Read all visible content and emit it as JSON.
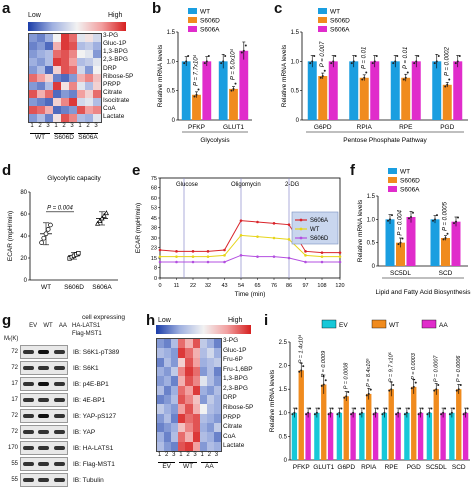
{
  "panels": {
    "a": {
      "label": "a",
      "legend_low": "Low",
      "legend_high": "High",
      "rows": [
        "3-PG",
        "Gluc-1P",
        "1,3-BPG",
        "2,3-BPG",
        "DRP",
        "Ribose-5P",
        "PRPP",
        "Citrate",
        "Isocitrate",
        "CoA",
        "Lactate"
      ],
      "col_numbers": [
        "1",
        "2",
        "3",
        "1",
        "2",
        "3",
        "1",
        "2",
        "3"
      ],
      "groups": [
        "WT",
        "S606D",
        "S606A"
      ],
      "matrix": [
        [
          0.2,
          0.15,
          0.25,
          0.5,
          0.95,
          0.85,
          0.45,
          0.55,
          0.4
        ],
        [
          0.15,
          0.2,
          0.1,
          0.7,
          0.95,
          0.9,
          0.3,
          0.35,
          0.25
        ],
        [
          0.2,
          0.25,
          0.3,
          0.85,
          0.9,
          0.8,
          0.5,
          0.45,
          0.2
        ],
        [
          0.25,
          0.2,
          0.3,
          0.95,
          0.9,
          0.75,
          0.3,
          0.35,
          0.45
        ],
        [
          0.2,
          0.3,
          0.1,
          0.6,
          0.9,
          0.85,
          0.4,
          0.2,
          0.5
        ],
        [
          0.85,
          0.75,
          0.6,
          0.15,
          0.1,
          0.2,
          0.7,
          0.8,
          0.65
        ],
        [
          0.2,
          0.15,
          0.3,
          0.95,
          0.55,
          0.8,
          0.45,
          0.3,
          0.6
        ],
        [
          0.9,
          0.7,
          0.85,
          0.1,
          0.2,
          0.15,
          0.75,
          0.6,
          0.85
        ],
        [
          0.2,
          0.15,
          0.1,
          0.6,
          0.8,
          0.95,
          0.4,
          0.45,
          0.3
        ],
        [
          0.9,
          0.85,
          0.7,
          0.1,
          0.15,
          0.2,
          0.9,
          0.75,
          0.8
        ],
        [
          0.2,
          0.3,
          0.15,
          0.55,
          0.9,
          0.8,
          0.3,
          0.25,
          0.45
        ]
      ]
    },
    "b": {
      "label": "b",
      "legend": [
        "WT",
        "S606D",
        "S606A"
      ],
      "colors": [
        "#1a9ee0",
        "#f08b1e",
        "#e02ccb"
      ],
      "ylabel": "Relative mRNA levels",
      "yticks": [
        "0",
        "0.5",
        "1.0",
        "1.5"
      ],
      "ymax": 1.5,
      "categories": [
        "PFKP",
        "GLUT1"
      ],
      "values": [
        [
          1.0,
          0.43,
          1.0
        ],
        [
          1.0,
          0.53,
          1.18
        ]
      ],
      "errors": [
        [
          0.08,
          0.05,
          0.08
        ],
        [
          0.12,
          0.04,
          0.15
        ]
      ],
      "pvalues": [
        "P = 7.7x10⁴",
        "P = 5.0x10⁴"
      ],
      "xlabel": "Glycolysis"
    },
    "c": {
      "label": "c",
      "legend": [
        "WT",
        "S606D",
        "S606A"
      ],
      "colors": [
        "#1a9ee0",
        "#f08b1e",
        "#e02ccb"
      ],
      "ylabel": "Relative mRNA levels",
      "yticks": [
        "0",
        "0.5",
        "1.0",
        "1.5"
      ],
      "ymax": 1.5,
      "categories": [
        "G6PD",
        "RPIA",
        "RPE",
        "PGD"
      ],
      "values": [
        [
          1.0,
          0.75,
          1.0
        ],
        [
          1.0,
          0.72,
          1.0
        ],
        [
          1.0,
          0.72,
          1.0
        ],
        [
          1.0,
          0.6,
          1.0
        ]
      ],
      "errors": [
        [
          0.1,
          0.05,
          0.1
        ],
        [
          0.1,
          0.05,
          0.1
        ],
        [
          0.1,
          0.06,
          0.1
        ],
        [
          0.12,
          0.04,
          0.1
        ]
      ],
      "pvalues": [
        "P = 0.007",
        "P = 0.01",
        "P = 0.01",
        "P = 0.0002"
      ],
      "xlabel": "Pentose Phosphate Pathway"
    },
    "d": {
      "label": "d",
      "title": "Glycolytic capacity",
      "ylabel": "ECAR (mpH/min)",
      "yticks": [
        "0",
        "20",
        "40",
        "60",
        "80"
      ],
      "ymax": 80,
      "categories": [
        "WT",
        "S606D",
        "S606A"
      ],
      "means": [
        42,
        22,
        56
      ],
      "errors": [
        10,
        3,
        6
      ],
      "pvalue": "P = 0.004"
    },
    "e": {
      "label": "e",
      "ylabel": "ECAR (mpH/min)",
      "xlabel": "Time (min)",
      "yticks": [
        "0",
        "8",
        "15",
        "23",
        "30",
        "38",
        "45",
        "53",
        "60",
        "68",
        "75"
      ],
      "xticks": [
        "0",
        "11",
        "22",
        "32",
        "43",
        "54",
        "65",
        "76",
        "86",
        "97",
        "108",
        "120"
      ],
      "treatments": [
        "Glucose",
        "Oligomycin",
        "2-DG"
      ],
      "legend": [
        "S606A",
        "WT",
        "S606D"
      ],
      "colors": [
        "#d9242a",
        "#e6d51a",
        "#b34fe0"
      ],
      "chart_data": {
        "type": "line",
        "x": [
          0,
          11,
          22,
          32,
          43,
          54,
          65,
          76,
          86,
          97,
          108,
          120
        ],
        "series": [
          {
            "name": "S606A",
            "values": [
              21,
              20,
              20,
              20,
              21,
              43,
              42,
              41,
              40,
              20,
              19,
              19
            ]
          },
          {
            "name": "WT",
            "values": [
              16,
              16,
              16,
              16,
              17,
              32,
              31,
              30,
              29,
              17,
              16,
              16
            ]
          },
          {
            "name": "S606D",
            "values": [
              12,
              12,
              12,
              12,
              12,
              17,
              16,
              16,
              15,
              12,
              12,
              12
            ]
          }
        ],
        "xlim": [
          0,
          120
        ],
        "ylim": [
          0,
          75
        ]
      }
    },
    "f": {
      "label": "f",
      "legend": [
        "WT",
        "S606D",
        "S606A"
      ],
      "colors": [
        "#1a9ee0",
        "#f08b1e",
        "#e02ccb"
      ],
      "ylabel": "Relative mRNA levels",
      "yticks": [
        "0",
        "0.5",
        "1.0",
        "1.5"
      ],
      "ymax": 1.5,
      "categories": [
        "SC5DL",
        "SCD"
      ],
      "values": [
        [
          1.0,
          0.5,
          1.05
        ],
        [
          1.0,
          0.6,
          0.95
        ]
      ],
      "errors": [
        [
          0.1,
          0.1,
          0.12
        ],
        [
          0.08,
          0.05,
          0.1
        ]
      ],
      "pvalues": [
        "P = 0.004",
        "P = 0.0005"
      ],
      "xlabel": "Lipid and Fatty Acid Biosynthesis"
    },
    "g": {
      "label": "g",
      "mr_label": "Mᵣ(K)",
      "lanes": [
        "EV",
        "WT",
        "AA"
      ],
      "cell_expressing": "cell expressing",
      "ha_lats1": "HA-LATS1",
      "flag_mst1": "Flag-MST1",
      "rows": [
        {
          "mr": "72",
          "ib": "IB: S6K1-pT389"
        },
        {
          "mr": "72",
          "ib": "IB: S6K1"
        },
        {
          "mr": "17",
          "ib": "IB: p4E-BP1"
        },
        {
          "mr": "17",
          "ib": "IB: 4E-BP1"
        },
        {
          "mr": "72",
          "ib": "IB: YAP-pS127"
        },
        {
          "mr": "72",
          "ib": "IB: YAP"
        },
        {
          "mr": "170",
          "ib": "IB: HA-LATS1"
        },
        {
          "mr": "55",
          "ib": "IB: Flag-MST1"
        },
        {
          "mr": "55",
          "ib": "IB: Tubulin"
        }
      ]
    },
    "h": {
      "label": "h",
      "legend_low": "Low",
      "legend_high": "High",
      "rows": [
        "3-PG",
        "Gluc-1P",
        "Fru-6P",
        "Fru-1,6BP",
        "1,3-BPG",
        "2,3-BPG",
        "DRP",
        "Ribose-5P",
        "PRPP",
        "Citrate",
        "CoA",
        "Lactate"
      ],
      "col_numbers": [
        "1",
        "2",
        "3",
        "1",
        "2",
        "3",
        "1",
        "2",
        "3"
      ],
      "groups": [
        "EV",
        "WT",
        "AA"
      ],
      "matrix": [
        [
          0.2,
          0.15,
          0.3,
          0.85,
          0.7,
          0.9,
          0.35,
          0.25,
          0.15
        ],
        [
          0.3,
          0.25,
          0.2,
          0.95,
          0.85,
          0.7,
          0.3,
          0.4,
          0.25
        ],
        [
          0.15,
          0.3,
          0.2,
          0.6,
          0.9,
          0.75,
          0.25,
          0.3,
          0.35
        ],
        [
          0.25,
          0.2,
          0.35,
          0.8,
          0.95,
          0.85,
          0.2,
          0.3,
          0.15
        ],
        [
          0.2,
          0.25,
          0.15,
          0.7,
          0.9,
          0.8,
          0.45,
          0.3,
          0.2
        ],
        [
          0.3,
          0.15,
          0.25,
          0.85,
          0.75,
          0.95,
          0.25,
          0.2,
          0.3
        ],
        [
          0.15,
          0.2,
          0.3,
          0.9,
          0.8,
          0.65,
          0.2,
          0.35,
          0.25
        ],
        [
          0.35,
          0.25,
          0.2,
          0.75,
          0.9,
          0.7,
          0.5,
          0.3,
          0.25
        ],
        [
          0.2,
          0.3,
          0.15,
          0.95,
          0.85,
          0.9,
          0.3,
          0.25,
          0.2
        ],
        [
          0.15,
          0.2,
          0.25,
          0.65,
          0.8,
          0.9,
          0.25,
          0.2,
          0.35
        ],
        [
          0.25,
          0.15,
          0.3,
          0.85,
          0.7,
          0.95,
          0.3,
          0.25,
          0.15
        ],
        [
          0.3,
          0.2,
          0.15,
          0.9,
          0.95,
          0.75,
          0.2,
          0.3,
          0.25
        ]
      ]
    },
    "i": {
      "label": "i",
      "legend": [
        "EV",
        "WT",
        "AA"
      ],
      "colors": [
        "#17c8d8",
        "#f08b1e",
        "#e02ccb"
      ],
      "ylabel": "Relative mRNA levels",
      "yticks": [
        "0",
        "0.5",
        "1.0",
        "1.5",
        "2.0",
        "2.5"
      ],
      "ymax": 2.5,
      "categories": [
        "PFKP",
        "GLUT1",
        "G6PD",
        "RPIA",
        "RPE",
        "PGD",
        "SC5DL",
        "SCD"
      ],
      "values": [
        [
          1.0,
          1.9,
          1.0
        ],
        [
          1.0,
          1.6,
          1.0
        ],
        [
          1.0,
          1.35,
          1.0
        ],
        [
          1.0,
          1.4,
          1.0
        ],
        [
          1.0,
          1.5,
          1.0
        ],
        [
          1.0,
          1.55,
          1.0
        ],
        [
          1.0,
          1.5,
          1.0
        ],
        [
          1.0,
          1.5,
          1.0
        ]
      ],
      "errors": [
        [
          0.1,
          0.15,
          0.1
        ],
        [
          0.1,
          0.2,
          0.1
        ],
        [
          0.1,
          0.1,
          0.1
        ],
        [
          0.1,
          0.12,
          0.1
        ],
        [
          0.1,
          0.15,
          0.1
        ],
        [
          0.1,
          0.15,
          0.1
        ],
        [
          0.1,
          0.12,
          0.1
        ],
        [
          0.1,
          0.1,
          0.1
        ]
      ],
      "pvalues": [
        "P = 1.4x10⁴",
        "P = 0.0009",
        "P = 0.0008",
        "P = 8.4x10⁵",
        "P = 9.7 x10⁵",
        "P = 0.0003",
        "P = 0.0007",
        "P = 0.0006"
      ]
    }
  }
}
